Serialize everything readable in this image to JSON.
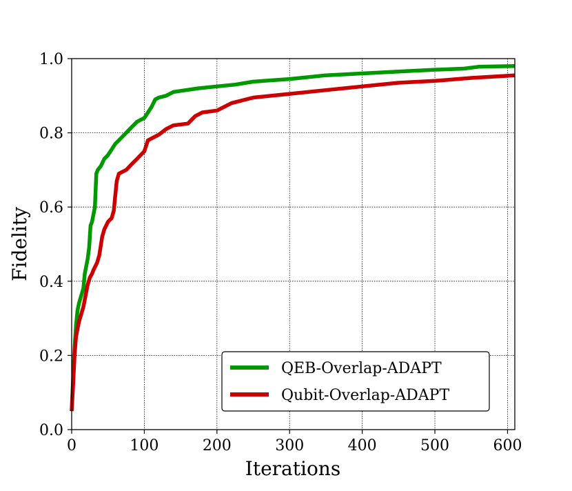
{
  "chart_data": {
    "type": "line",
    "title": "",
    "xlabel": "Iterations",
    "ylabel": "Fidelity",
    "xlim": [
      0,
      610
    ],
    "ylim": [
      0.0,
      1.0
    ],
    "xticks": [
      "0",
      "100",
      "200",
      "300",
      "400",
      "500",
      "600"
    ],
    "yticks": [
      "0.0",
      "0.2",
      "0.4",
      "0.6",
      "0.8",
      "1.0"
    ],
    "grid": true,
    "legend_position": "lower-right",
    "series": [
      {
        "name": "QEB-Overlap-ADAPT",
        "color": "#009900",
        "x": [
          0,
          2,
          4,
          6,
          8,
          10,
          13,
          16,
          18,
          20,
          22,
          24,
          26,
          28,
          30,
          32,
          34,
          36,
          40,
          45,
          50,
          55,
          60,
          65,
          70,
          75,
          80,
          85,
          90,
          95,
          100,
          105,
          110,
          115,
          120,
          130,
          140,
          150,
          175,
          200,
          225,
          250,
          300,
          350,
          400,
          450,
          500,
          540,
          560,
          610
        ],
        "y": [
          0.05,
          0.14,
          0.22,
          0.28,
          0.32,
          0.34,
          0.36,
          0.38,
          0.42,
          0.44,
          0.46,
          0.49,
          0.55,
          0.56,
          0.58,
          0.6,
          0.69,
          0.7,
          0.71,
          0.73,
          0.74,
          0.755,
          0.77,
          0.78,
          0.79,
          0.8,
          0.81,
          0.82,
          0.83,
          0.835,
          0.84,
          0.855,
          0.87,
          0.89,
          0.895,
          0.9,
          0.91,
          0.913,
          0.92,
          0.925,
          0.93,
          0.938,
          0.945,
          0.955,
          0.96,
          0.965,
          0.97,
          0.973,
          0.978,
          0.98
        ]
      },
      {
        "name": "Qubit-Overlap-ADAPT",
        "color": "#cc0000",
        "x": [
          0,
          2,
          4,
          6,
          8,
          10,
          13,
          16,
          18,
          20,
          22,
          25,
          28,
          30,
          35,
          38,
          42,
          45,
          50,
          55,
          58,
          60,
          62,
          65,
          70,
          75,
          80,
          85,
          90,
          95,
          100,
          105,
          110,
          115,
          120,
          130,
          140,
          160,
          170,
          180,
          200,
          220,
          250,
          300,
          350,
          400,
          450,
          500,
          550,
          610
        ],
        "y": [
          0.05,
          0.12,
          0.2,
          0.25,
          0.27,
          0.29,
          0.31,
          0.33,
          0.35,
          0.37,
          0.39,
          0.41,
          0.42,
          0.43,
          0.45,
          0.47,
          0.52,
          0.54,
          0.56,
          0.57,
          0.59,
          0.63,
          0.67,
          0.69,
          0.695,
          0.7,
          0.71,
          0.72,
          0.73,
          0.74,
          0.75,
          0.78,
          0.785,
          0.79,
          0.795,
          0.81,
          0.82,
          0.825,
          0.845,
          0.855,
          0.86,
          0.88,
          0.895,
          0.905,
          0.915,
          0.925,
          0.935,
          0.94,
          0.948,
          0.955
        ]
      }
    ]
  }
}
